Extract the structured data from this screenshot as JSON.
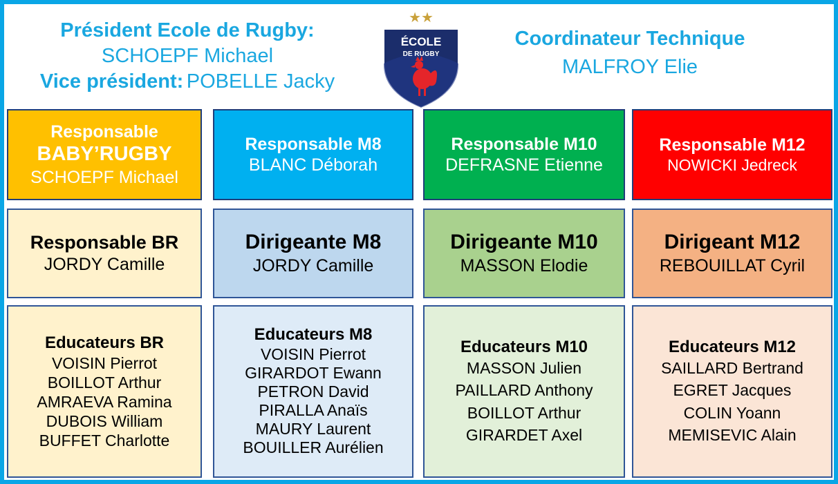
{
  "header": {
    "president_label": "Président Ecole de Rugby:",
    "president_name": "SCHOEPF Michael",
    "vice_label": "Vice président:",
    "vice_name": "POBELLE Jacky",
    "coordinator_label": "Coordinateur Technique",
    "coordinator_name": "MALFROY Elie"
  },
  "logo": {
    "line1": "ÉCOLE",
    "line2": "DE RUGBY",
    "stars": "★★",
    "colors": {
      "shield": "#1b2d6b",
      "rooster": "#e5252a",
      "stars": "#c9a13b"
    }
  },
  "responsables": [
    {
      "title_line1": "Responsable",
      "title_line2": "BABY’RUGBY",
      "name": "SCHOEPF Michael",
      "bg": "#ffc000"
    },
    {
      "title_line1": "Responsable M8",
      "title_line2": "",
      "name": "BLANC Déborah",
      "bg": "#00b0f0"
    },
    {
      "title_line1": "Responsable M10",
      "title_line2": "",
      "name": "DEFRASNE Etienne",
      "bg": "#00b050"
    },
    {
      "title_line1": "Responsable M12",
      "title_line2": "",
      "name": "NOWICKI Jedreck",
      "bg": "#ff0000"
    }
  ],
  "dirigeants": [
    {
      "title": "Responsable BR",
      "name": "JORDY Camille",
      "bg": "#fff2cc"
    },
    {
      "title": "Dirigeante M8",
      "name": "JORDY Camille",
      "bg": "#bdd7ee"
    },
    {
      "title": "Dirigeante M10",
      "name": "MASSON Elodie",
      "bg": "#a9d18e"
    },
    {
      "title": "Dirigeant M12",
      "name": "REBOUILLAT Cyril",
      "bg": "#f4b183"
    }
  ],
  "educateurs": [
    {
      "title": "Educateurs BR",
      "bg": "#fff2cc",
      "names": [
        "VOISIN Pierrot",
        "BOILLOT Arthur",
        "AMRAEVA Ramina",
        "DUBOIS William",
        "BUFFET Charlotte"
      ]
    },
    {
      "title": "Educateurs M8",
      "bg": "#deebf7",
      "names": [
        "VOISIN Pierrot",
        "GIRARDOT Ewann",
        "PETRON David",
        "PIRALLA Anaïs",
        "MAURY Laurent",
        "BOUILLER Aurélien"
      ]
    },
    {
      "title": "Educateurs M10",
      "bg": "#e2f0d9",
      "names": [
        "MASSON Julien",
        "PAILLARD Anthony",
        "BOILLOT Arthur",
        "GIRARDET Axel"
      ]
    },
    {
      "title": "Educateurs M12",
      "bg": "#fbe5d6",
      "names": [
        "SAILLARD Bertrand",
        "EGRET Jacques",
        "COLIN Yoann",
        "MEMISEVIC Alain"
      ]
    }
  ]
}
